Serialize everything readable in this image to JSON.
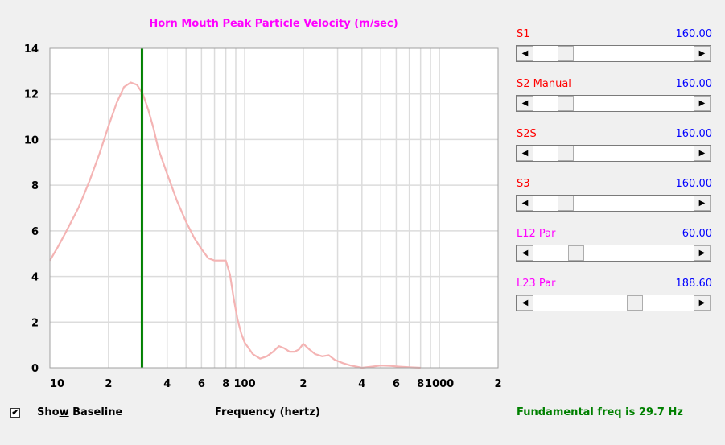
{
  "chart_title": "Horn Mouth Peak Particle Velocity (m/sec)",
  "colors": {
    "title": "#ff00ff",
    "curve": "#f4b4b4",
    "marker": "#008000",
    "red_label": "#ff0000",
    "magenta_label": "#ff00ff",
    "blue_value": "#0000ff",
    "green_text": "#008000"
  },
  "chart_data": {
    "type": "line",
    "title": "Horn Mouth Peak Particle Velocity (m/sec)",
    "xlabel": "Frequency (hertz)",
    "ylabel": "",
    "x_scale": "log",
    "xlim": [
      10,
      2000
    ],
    "ylim": [
      0,
      14
    ],
    "grid": true,
    "y_ticks": [
      "0",
      "2",
      "4",
      "6",
      "8",
      "10",
      "12",
      "14"
    ],
    "x_ticks": [
      {
        "value": 10,
        "label": "10"
      },
      {
        "value": 20,
        "label": "2"
      },
      {
        "value": 40,
        "label": "4"
      },
      {
        "value": 60,
        "label": "6"
      },
      {
        "value": 80,
        "label": "8"
      },
      {
        "value": 100,
        "label": "100"
      },
      {
        "value": 200,
        "label": "2"
      },
      {
        "value": 400,
        "label": "4"
      },
      {
        "value": 600,
        "label": "6"
      },
      {
        "value": 800,
        "label": "8"
      },
      {
        "value": 1000,
        "label": "1000"
      },
      {
        "value": 2000,
        "label": "2"
      }
    ],
    "marker_line": {
      "x": 29.7
    },
    "series": [
      {
        "x": [
          10,
          11,
          12,
          14,
          16,
          18,
          20,
          22,
          24,
          26,
          28,
          30,
          32,
          34,
          36,
          40,
          45,
          50,
          55,
          60,
          65,
          70,
          75,
          80,
          84,
          88,
          92,
          96,
          100,
          110,
          120,
          130,
          140,
          150,
          160,
          170,
          180,
          190,
          200,
          215,
          230,
          250,
          270,
          290,
          320,
          350,
          400,
          450,
          500,
          560,
          620,
          700,
          800
        ],
        "y": [
          4.7,
          5.3,
          5.9,
          7.0,
          8.2,
          9.4,
          10.6,
          11.6,
          12.3,
          12.5,
          12.4,
          12.0,
          11.3,
          10.5,
          9.6,
          8.5,
          7.3,
          6.4,
          5.7,
          5.2,
          4.8,
          4.7,
          4.7,
          4.7,
          4.1,
          3.0,
          2.1,
          1.5,
          1.1,
          0.6,
          0.4,
          0.5,
          0.7,
          0.95,
          0.85,
          0.7,
          0.7,
          0.8,
          1.05,
          0.8,
          0.6,
          0.5,
          0.55,
          0.35,
          0.2,
          0.1,
          0.0,
          0.05,
          0.1,
          0.08,
          0.05,
          0.02,
          0.0
        ]
      }
    ]
  },
  "sliders": [
    {
      "name": "S1",
      "value": "160.00",
      "position": 0.17,
      "name_color": "red_label"
    },
    {
      "name": "S2  Manual",
      "value": "160.00",
      "position": 0.17,
      "name_color": "red_label"
    },
    {
      "name": "S2S",
      "value": "160.00",
      "position": 0.17,
      "name_color": "red_label"
    },
    {
      "name": "S3",
      "value": "160.00",
      "position": 0.17,
      "name_color": "red_label"
    },
    {
      "name": "L12  Par",
      "value": "60.00",
      "position": 0.24,
      "name_color": "magenta_label"
    },
    {
      "name": "L23  Par",
      "value": "188.60",
      "position": 0.65,
      "name_color": "magenta_label"
    }
  ],
  "show_baseline": {
    "label": "Show Baseline",
    "checked": true,
    "check_glyph": "✔"
  },
  "frequency_label": "Frequency (hertz)",
  "fundamental_text": "Fundamental freq is 29.7 Hz",
  "icons": {
    "left_arrow": "◀",
    "right_arrow": "▶"
  }
}
